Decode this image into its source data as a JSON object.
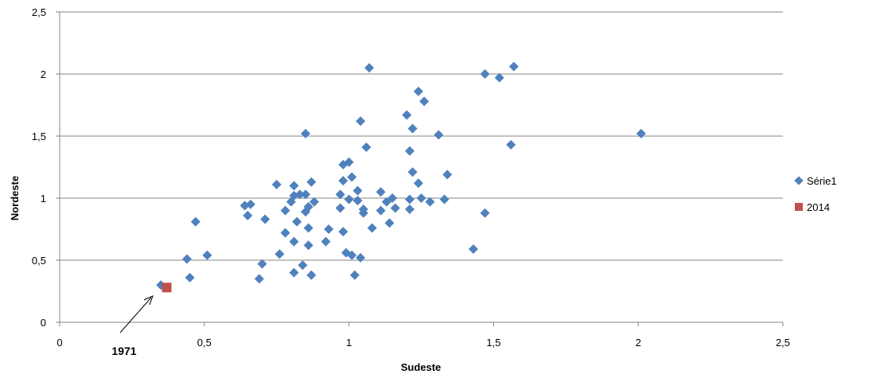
{
  "chart_data": {
    "type": "scatter",
    "xlabel": "Sudeste",
    "ylabel": "Nordeste",
    "xlim": [
      0,
      2.5
    ],
    "ylim": [
      0,
      2.5
    ],
    "xticks": [
      "0",
      "0,5",
      "1",
      "1,5",
      "2",
      "2,5"
    ],
    "yticks": [
      "0",
      "0,5",
      "1",
      "1,5",
      "2",
      "2,5"
    ],
    "grid": "horizontal",
    "legend_position": "right",
    "series": [
      {
        "name": "Série1",
        "color": "#4F81BD",
        "marker": "diamond",
        "points": [
          [
            0.35,
            0.3
          ],
          [
            0.44,
            0.51
          ],
          [
            0.45,
            0.36
          ],
          [
            0.47,
            0.81
          ],
          [
            0.51,
            0.54
          ],
          [
            0.64,
            0.94
          ],
          [
            0.65,
            0.86
          ],
          [
            0.66,
            0.95
          ],
          [
            0.69,
            0.35
          ],
          [
            0.7,
            0.47
          ],
          [
            0.71,
            0.83
          ],
          [
            0.75,
            1.11
          ],
          [
            0.76,
            0.55
          ],
          [
            0.78,
            0.9
          ],
          [
            0.78,
            0.72
          ],
          [
            0.8,
            0.97
          ],
          [
            0.81,
            1.1
          ],
          [
            0.81,
            1.02
          ],
          [
            0.82,
            0.81
          ],
          [
            0.81,
            0.65
          ],
          [
            0.81,
            0.4
          ],
          [
            0.83,
            1.03
          ],
          [
            0.84,
            0.46
          ],
          [
            0.85,
            1.03
          ],
          [
            0.85,
            1.52
          ],
          [
            0.85,
            0.89
          ],
          [
            0.86,
            0.62
          ],
          [
            0.86,
            0.76
          ],
          [
            0.87,
            0.38
          ],
          [
            0.86,
            0.93
          ],
          [
            0.87,
            1.13
          ],
          [
            0.88,
            0.97
          ],
          [
            0.93,
            0.75
          ],
          [
            0.92,
            0.65
          ],
          [
            0.97,
            1.03
          ],
          [
            0.97,
            0.92
          ],
          [
            0.98,
            1.27
          ],
          [
            0.98,
            1.14
          ],
          [
            0.98,
            0.73
          ],
          [
            0.99,
            0.56
          ],
          [
            1.0,
            1.29
          ],
          [
            1.0,
            0.99
          ],
          [
            1.01,
            1.17
          ],
          [
            1.01,
            0.54
          ],
          [
            1.02,
            0.38
          ],
          [
            1.03,
            1.06
          ],
          [
            1.03,
            0.98
          ],
          [
            1.04,
            1.62
          ],
          [
            1.04,
            0.52
          ],
          [
            1.05,
            0.91
          ],
          [
            1.05,
            0.88
          ],
          [
            1.06,
            1.41
          ],
          [
            1.07,
            2.05
          ],
          [
            1.08,
            0.76
          ],
          [
            1.11,
            1.05
          ],
          [
            1.11,
            0.9
          ],
          [
            1.13,
            0.97
          ],
          [
            1.14,
            0.8
          ],
          [
            1.15,
            1.0
          ],
          [
            1.16,
            0.92
          ],
          [
            1.2,
            1.67
          ],
          [
            1.21,
            1.38
          ],
          [
            1.21,
            0.99
          ],
          [
            1.21,
            0.91
          ],
          [
            1.22,
            1.21
          ],
          [
            1.22,
            1.56
          ],
          [
            1.24,
            1.86
          ],
          [
            1.24,
            1.12
          ],
          [
            1.25,
            1.0
          ],
          [
            1.26,
            1.78
          ],
          [
            1.28,
            0.97
          ],
          [
            1.31,
            1.51
          ],
          [
            1.33,
            0.99
          ],
          [
            1.34,
            1.19
          ],
          [
            1.43,
            0.59
          ],
          [
            1.47,
            2.0
          ],
          [
            1.47,
            0.88
          ],
          [
            1.52,
            1.97
          ],
          [
            1.56,
            1.43
          ],
          [
            1.57,
            2.06
          ],
          [
            2.01,
            1.52
          ]
        ]
      },
      {
        "name": "2014",
        "color": "#C0504D",
        "marker": "square",
        "points": [
          [
            0.37,
            0.28
          ]
        ]
      }
    ],
    "annotations": [
      {
        "text": "1971",
        "point": [
          0.35,
          0.3
        ]
      }
    ]
  }
}
